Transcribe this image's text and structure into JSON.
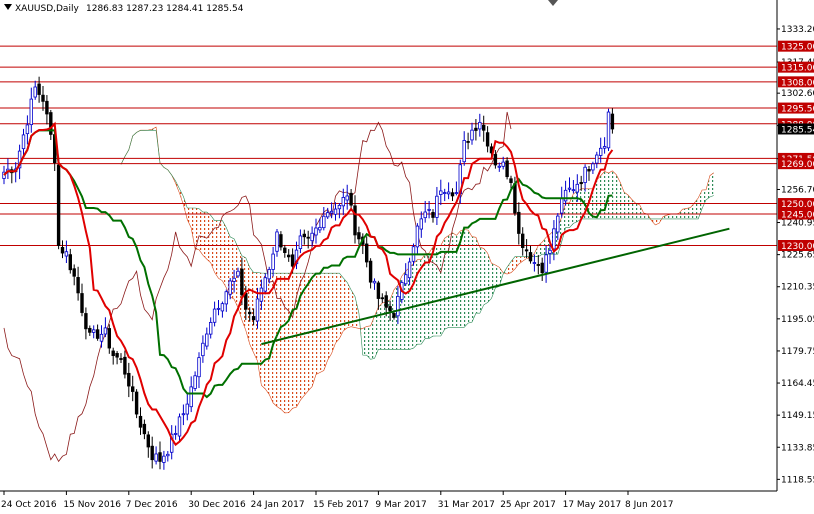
{
  "header": {
    "symbol": "XAUUSD,Daily",
    "ohlc": "1286.83 1287.23 1284.41 1285.54"
  },
  "colors": {
    "background": "#ffffff",
    "bull_candle": "#0000cc",
    "bear_candle": "#000000",
    "tenkan": "#e00000",
    "kijun": "#007000",
    "chikou": "#8b1a1a",
    "kumo_bear": "#d84a1a",
    "kumo_bull": "#2e8b57",
    "level_line": "#c00000",
    "level_label_bg": "#c00000",
    "trendline": "#006400",
    "current_price_label_bg": "#000000"
  },
  "chart_data": {
    "type": "candlestick",
    "title": "XAUUSD,Daily",
    "y_axis": {
      "position": "right",
      "ylim": [
        1113,
        1347
      ],
      "ticks": [
        1333.2,
        1317.45,
        1302.6,
        1287.15,
        1271.4,
        1256.7,
        1240.95,
        1225.65,
        1210.35,
        1195.05,
        1179.75,
        1164.45,
        1149.15,
        1133.85,
        1118.55
      ]
    },
    "x_axis": {
      "tick_labels": [
        "24 Oct 2016",
        "15 Nov 2016",
        "7 Dec 2016",
        "30 Dec 2016",
        "24 Jan 2017",
        "15 Feb 2017",
        "9 Mar 2017",
        "31 Mar 2017",
        "25 Apr 2017",
        "17 May 2017",
        "8 Jun 2017"
      ],
      "tick_bars": [
        0,
        16,
        32,
        48,
        64,
        80,
        96,
        112,
        128,
        144,
        160
      ]
    },
    "horizontal_levels": [
      1325.0,
      1315.0,
      1308.0,
      1295.5,
      1288.0,
      1271.5,
      1269.0,
      1250.0,
      1245.0,
      1230.0
    ],
    "current_price": 1285.54,
    "trendline": {
      "from": {
        "bar": 66,
        "price": 1183.0
      },
      "to": {
        "bar": 186,
        "price": 1238.0
      }
    },
    "indicators": [
      "Ichimoku Kinko Hyo"
    ],
    "close_anchors": [
      [
        0,
        1265
      ],
      [
        3,
        1268
      ],
      [
        6,
        1290
      ],
      [
        8,
        1305
      ],
      [
        10,
        1300
      ],
      [
        12,
        1282
      ],
      [
        13,
        1272
      ],
      [
        14,
        1230
      ],
      [
        16,
        1226
      ],
      [
        18,
        1215
      ],
      [
        20,
        1200
      ],
      [
        22,
        1186
      ],
      [
        24,
        1188
      ],
      [
        26,
        1188
      ],
      [
        28,
        1178
      ],
      [
        30,
        1175
      ],
      [
        32,
        1165
      ],
      [
        34,
        1150
      ],
      [
        36,
        1140
      ],
      [
        38,
        1130
      ],
      [
        40,
        1128
      ],
      [
        42,
        1133
      ],
      [
        44,
        1142
      ],
      [
        46,
        1150
      ],
      [
        48,
        1162
      ],
      [
        50,
        1175
      ],
      [
        52,
        1190
      ],
      [
        54,
        1200
      ],
      [
        56,
        1205
      ],
      [
        58,
        1212
      ],
      [
        60,
        1215
      ],
      [
        62,
        1200
      ],
      [
        64,
        1195
      ],
      [
        66,
        1210
      ],
      [
        68,
        1220
      ],
      [
        70,
        1235
      ],
      [
        72,
        1228
      ],
      [
        74,
        1218
      ],
      [
        76,
        1232
      ],
      [
        78,
        1232
      ],
      [
        80,
        1238
      ],
      [
        82,
        1245
      ],
      [
        84,
        1248
      ],
      [
        86,
        1248
      ],
      [
        88,
        1255
      ],
      [
        90,
        1238
      ],
      [
        92,
        1230
      ],
      [
        94,
        1215
      ],
      [
        96,
        1205
      ],
      [
        98,
        1200
      ],
      [
        100,
        1198
      ],
      [
        102,
        1210
      ],
      [
        104,
        1225
      ],
      [
        106,
        1238
      ],
      [
        108,
        1245
      ],
      [
        110,
        1245
      ],
      [
        112,
        1258
      ],
      [
        114,
        1258
      ],
      [
        116,
        1255
      ],
      [
        118,
        1278
      ],
      [
        120,
        1285
      ],
      [
        122,
        1290
      ],
      [
        124,
        1280
      ],
      [
        126,
        1270
      ],
      [
        128,
        1268
      ],
      [
        130,
        1262
      ],
      [
        132,
        1235
      ],
      [
        134,
        1228
      ],
      [
        136,
        1222
      ],
      [
        138,
        1220
      ],
      [
        140,
        1228
      ],
      [
        142,
        1245
      ],
      [
        144,
        1255
      ],
      [
        146,
        1258
      ],
      [
        148,
        1262
      ],
      [
        150,
        1268
      ],
      [
        152,
        1275
      ],
      [
        154,
        1280
      ],
      [
        155,
        1293
      ],
      [
        156,
        1285.54
      ]
    ]
  }
}
